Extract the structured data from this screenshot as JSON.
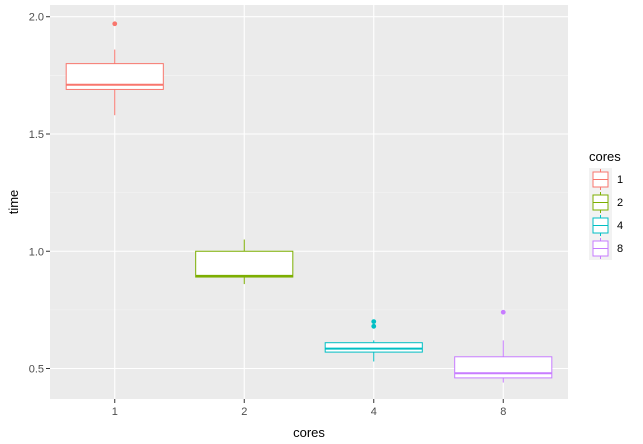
{
  "chart_data": {
    "type": "boxplot",
    "xlabel": "cores",
    "ylabel": "time",
    "categories": [
      "1",
      "2",
      "4",
      "8"
    ],
    "ylim": [
      0.37,
      2.05
    ],
    "yticks": [
      0.5,
      1.0,
      1.5,
      2.0
    ],
    "ytick_labels": [
      "0.5",
      "1.0",
      "1.5",
      "2.0"
    ],
    "grid": true,
    "legend": {
      "title": "cores",
      "position": "right",
      "entries": [
        "1",
        "2",
        "4",
        "8"
      ]
    },
    "series": [
      {
        "name": "1",
        "color": "#F8766D",
        "min": 1.58,
        "q1": 1.69,
        "median": 1.71,
        "q3": 1.8,
        "max": 1.86,
        "outliers": [
          1.97
        ]
      },
      {
        "name": "2",
        "color": "#7CAE00",
        "min": 0.86,
        "q1": 0.89,
        "median": 0.895,
        "q3": 1.0,
        "max": 1.05,
        "outliers": []
      },
      {
        "name": "4",
        "color": "#00BFC4",
        "min": 0.53,
        "q1": 0.57,
        "median": 0.585,
        "q3": 0.61,
        "max": 0.62,
        "outliers": [
          0.68,
          0.7
        ]
      },
      {
        "name": "8",
        "color": "#C77CFF",
        "min": 0.44,
        "q1": 0.46,
        "median": 0.48,
        "q3": 0.55,
        "max": 0.62,
        "outliers": [
          0.74
        ]
      }
    ]
  }
}
